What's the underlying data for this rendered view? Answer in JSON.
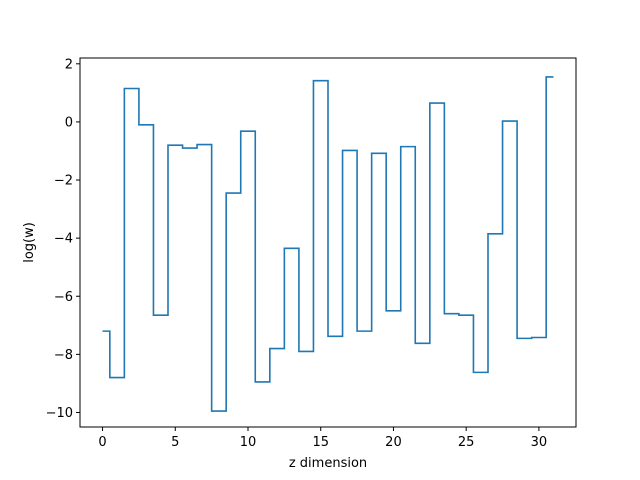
{
  "chart_data": {
    "type": "line",
    "step": "mid",
    "title": "",
    "xlabel": "z dimension",
    "ylabel": "log(w)",
    "xlim": [
      -1.55,
      32.55
    ],
    "ylim": [
      -10.5,
      2.2
    ],
    "xticks": [
      0,
      5,
      10,
      15,
      20,
      25,
      30
    ],
    "yticks": [
      -10,
      -8,
      -6,
      -4,
      -2,
      0,
      2
    ],
    "xtick_labels": [
      "0",
      "5",
      "10",
      "15",
      "20",
      "25",
      "30"
    ],
    "ytick_labels": [
      "−10",
      "−8",
      "−6",
      "−4",
      "−2",
      "0",
      "2"
    ],
    "grid": false,
    "color": "#1f77b4",
    "x": [
      0,
      1,
      2,
      3,
      4,
      5,
      6,
      7,
      8,
      9,
      10,
      11,
      12,
      13,
      14,
      15,
      16,
      17,
      18,
      19,
      20,
      21,
      22,
      23,
      24,
      25,
      26,
      27,
      28,
      29,
      30,
      31
    ],
    "y": [
      -7.2,
      -8.8,
      1.15,
      -0.1,
      -6.65,
      -0.8,
      -0.9,
      -0.78,
      -9.95,
      -2.45,
      -0.32,
      -8.95,
      -7.8,
      -4.35,
      -7.9,
      1.42,
      -7.38,
      -0.98,
      -7.2,
      -1.08,
      -6.5,
      -0.85,
      -7.62,
      0.65,
      -6.6,
      -6.65,
      -8.62,
      -3.85,
      0.03,
      -7.45,
      -7.42,
      1.55
    ]
  }
}
